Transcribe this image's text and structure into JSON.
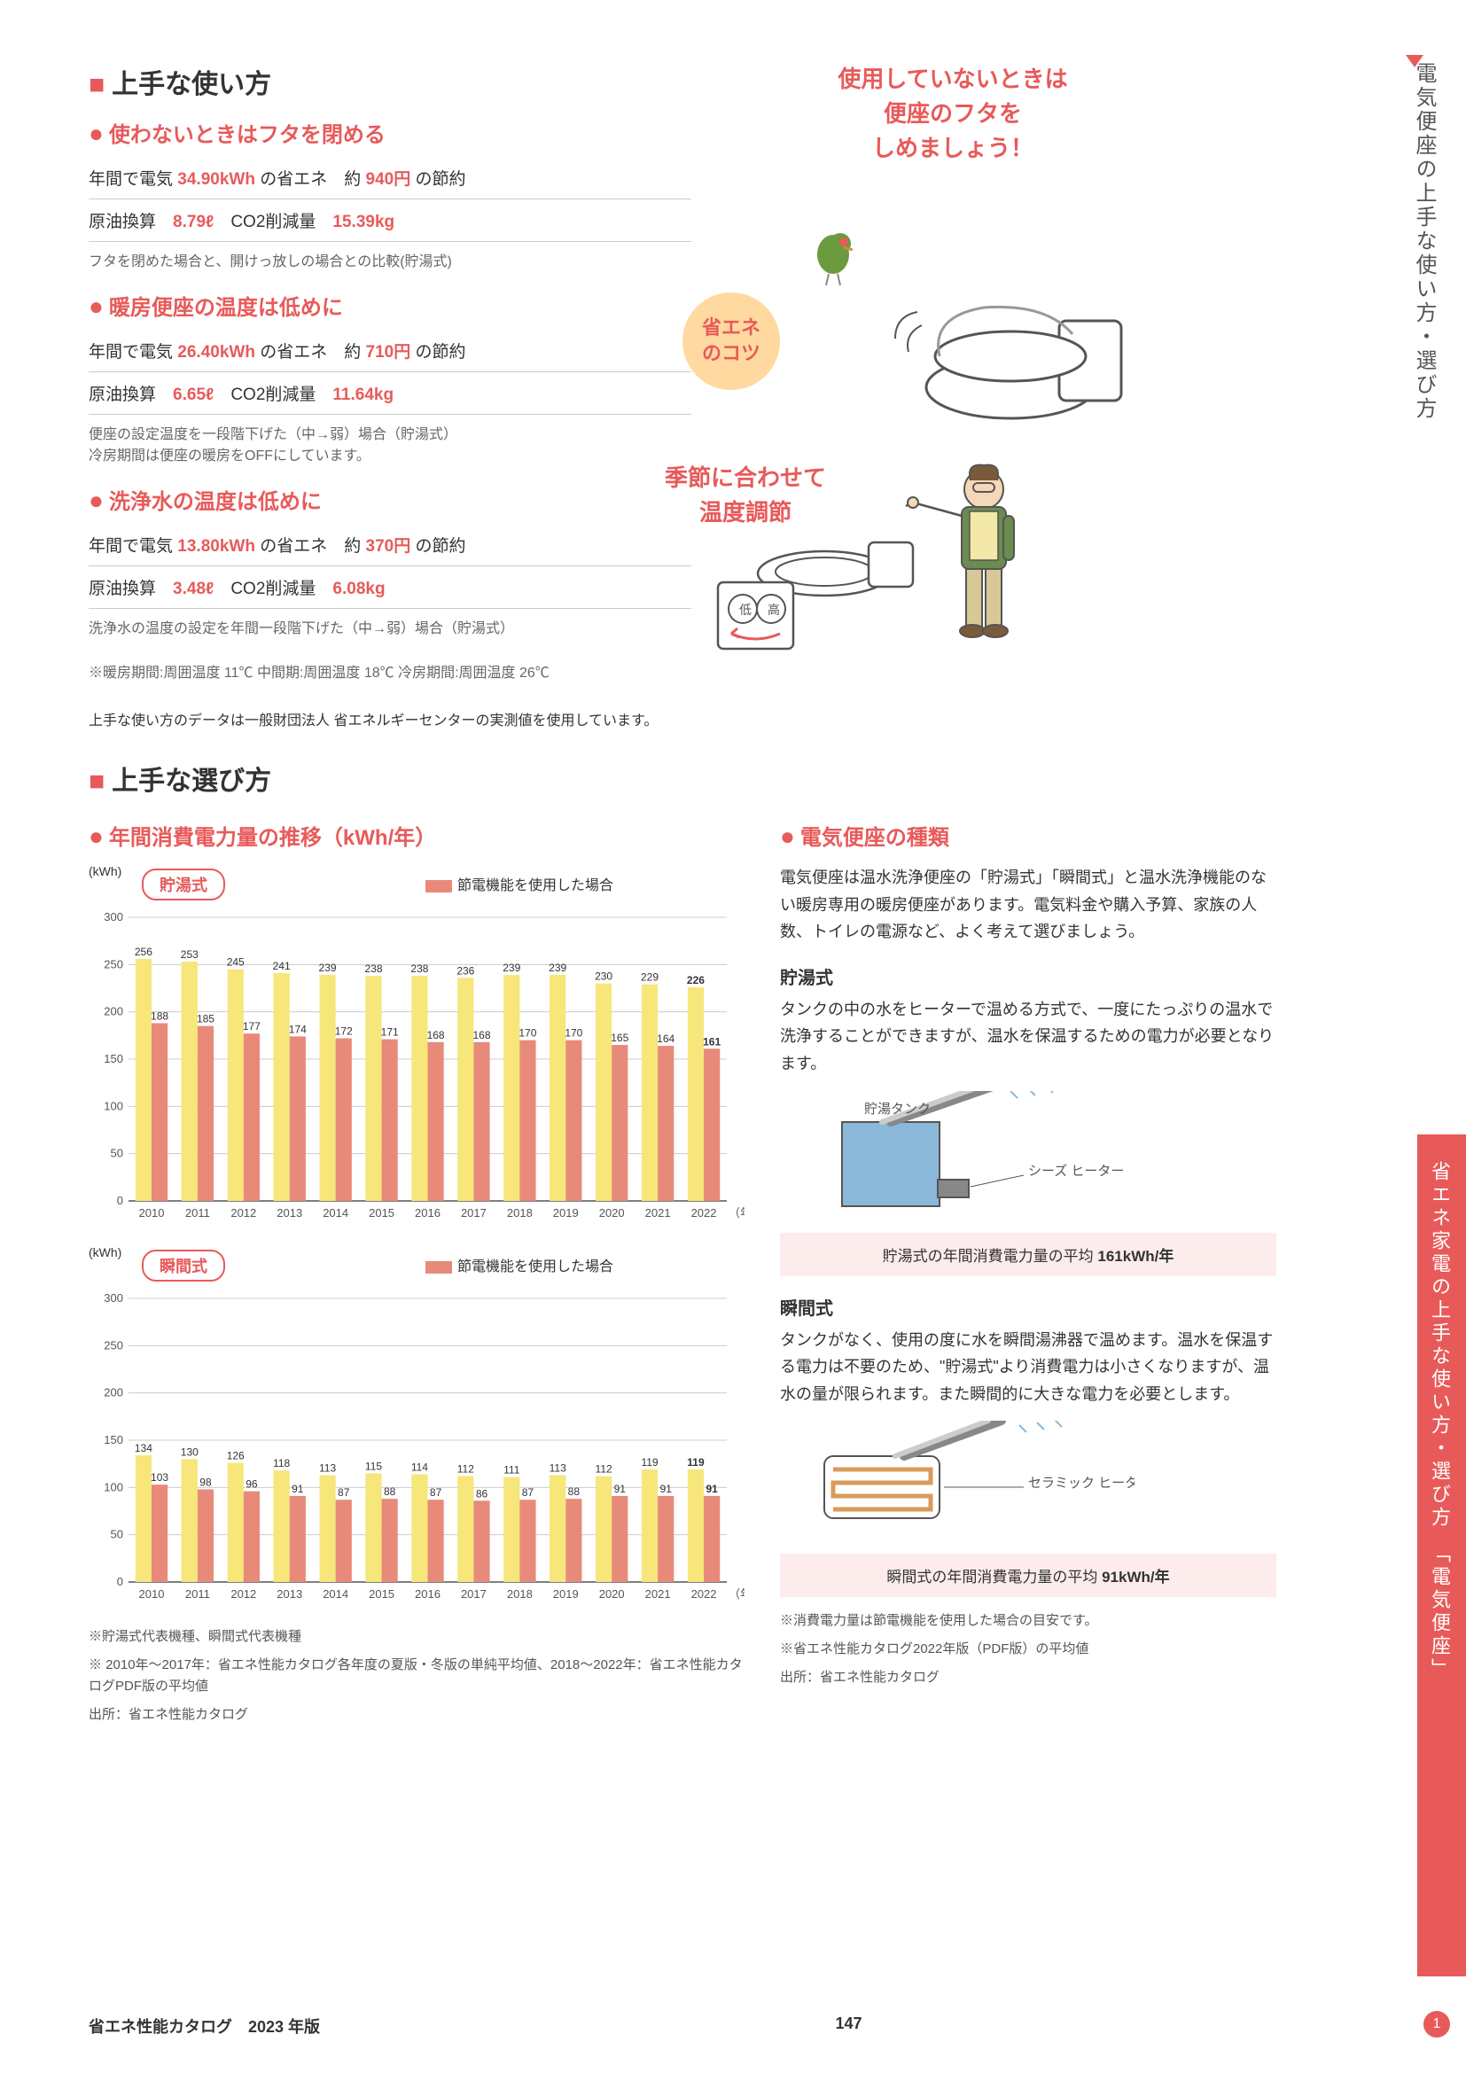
{
  "sidebar_vertical": "電気便座の上手な使い方・選び方",
  "sidebar_tab": "省エネ家電の上手な使い方・選び方　「電気便座」",
  "sec1_title": "上手な使い方",
  "tip1": {
    "title": "使わないときはフタを閉める",
    "row1_a": "年間で電気",
    "row1_kwh": "34.90kWh",
    "row1_b": "の省エネ　約",
    "row1_yen": "940円",
    "row1_c": "の節約",
    "row2_a": "原油換算",
    "row2_oil": "8.79ℓ",
    "row2_b": "　CO2削減量",
    "row2_co2": "15.39kg",
    "note": "フタを閉めた場合と、開けっ放しの場合との比較(貯湯式)"
  },
  "tip2": {
    "title": "暖房便座の温度は低めに",
    "row1_a": "年間で電気",
    "row1_kwh": "26.40kWh",
    "row1_b": "の省エネ　約",
    "row1_yen": "710円",
    "row1_c": "の節約",
    "row2_a": "原油換算",
    "row2_oil": "6.65ℓ",
    "row2_b": "　CO2削減量",
    "row2_co2": "11.64kg",
    "note": "便座の設定温度を一段階下げた（中→弱）場合（貯湯式）\n冷房期間は便座の暖房をOFFにしています。"
  },
  "tip3": {
    "title": "洗浄水の温度は低めに",
    "row1_a": "年間で電気",
    "row1_kwh": "13.80kWh",
    "row1_b": "の省エネ　約",
    "row1_yen": "370円",
    "row1_c": "の節約",
    "row2_a": "原油換算",
    "row2_oil": "3.48ℓ",
    "row2_b": "　CO2削減量",
    "row2_co2": "6.08kg",
    "note": "洗浄水の温度の設定を年間一段階下げた（中→弱）場合（貯湯式）"
  },
  "temp_note": "※暖房期間:周囲温度 11℃ 中間期:周囲温度 18℃ 冷房期間:周囲温度 26℃",
  "source_note": "上手な使い方のデータは一般財団法人 省エネルギーセンターの実測値を使用しています。",
  "speech1": "使用していないときは\n便座のフタを\nしめましょう！",
  "tip_circle": "省エネ\nのコツ",
  "speech2": "季節に合わせて\n温度調節",
  "sec2_title": "上手な選び方",
  "chart_main_title": "年間消費電力量の推移（kWh/年）",
  "chart1": {
    "tag": "貯湯式",
    "legend": "節電機能を使用した場合",
    "ylabel": "(kWh)",
    "ymax": 300,
    "ystep": 50,
    "years": [
      "2010",
      "2011",
      "2012",
      "2013",
      "2014",
      "2015",
      "2016",
      "2017",
      "2018",
      "2019",
      "2020",
      "2021",
      "2022"
    ],
    "yellow": [
      256,
      253,
      245,
      241,
      239,
      238,
      238,
      236,
      239,
      239,
      230,
      229,
      226
    ],
    "red": [
      188,
      185,
      177,
      174,
      172,
      171,
      168,
      168,
      170,
      170,
      165,
      164,
      161
    ],
    "bar_yellow": "#f7e679",
    "bar_red": "#e88a7a",
    "grid": "#cccccc",
    "highlight_last": "#e85a5a"
  },
  "chart2": {
    "tag": "瞬間式",
    "legend": "節電機能を使用した場合",
    "ylabel": "(kWh)",
    "ymax": 300,
    "ystep": 50,
    "years": [
      "2010",
      "2011",
      "2012",
      "2013",
      "2014",
      "2015",
      "2016",
      "2017",
      "2018",
      "2019",
      "2020",
      "2021",
      "2022"
    ],
    "yellow": [
      134,
      130,
      126,
      118,
      113,
      115,
      114,
      112,
      111,
      113,
      112,
      119,
      119
    ],
    "red": [
      103,
      98,
      96,
      91,
      87,
      88,
      87,
      86,
      87,
      88,
      91,
      91,
      91
    ],
    "bar_yellow": "#f7e679",
    "bar_red": "#e88a7a",
    "grid": "#cccccc",
    "highlight_last": "#e85a5a"
  },
  "chart_xunit": "（年）",
  "chart_note1": "※貯湯式代表機種、瞬間式代表機種",
  "chart_note2": "※ 2010年〜2017年：省エネ性能カタログ各年度の夏版・冬版の単純平均値、2018〜2022年：省エネ性能カタログPDF版の平均値",
  "chart_note3": "出所：省エネ性能カタログ",
  "types_title": "電気便座の種類",
  "types_intro": "電気便座は温水洗浄便座の「貯湯式」「瞬間式」と温水洗浄機能のない暖房専用の暖房便座があります。電気料金や購入予算、家族の人数、トイレの電源など、よく考えて選びましょう。",
  "type1_h": "貯湯式",
  "type1_p": "タンクの中の水をヒーターで温める方式で、一度にたっぷりの温水で洗浄することができますが、温水を保温するための電力が必要となります。",
  "type1_labels": {
    "tank": "貯湯タンク",
    "heater": "シーズ\nヒーター"
  },
  "type1_box": "貯湯式の年間消費電力量の平均",
  "type1_box_val": "161kWh/年",
  "type2_h": "瞬間式",
  "type2_p": "タンクがなく、使用の度に水を瞬間湯沸器で温めます。温水を保温する電力は不要のため、\"貯湯式\"より消費電力は小さくなりますが、温水の量が限られます。また瞬間的に大きな電力を必要とします。",
  "type2_labels": {
    "heater": "セラミック\nヒーター"
  },
  "type2_box": "瞬間式の年間消費電力量の平均",
  "type2_box_val": "91kWh/年",
  "types_note1": "※消費電力量は節電機能を使用した場合の目安です。",
  "types_note2": "※省エネ性能カタログ2022年版（PDF版）の平均値",
  "types_note3": "出所：省エネ性能カタログ",
  "footer_left": "省エネ性能カタログ　2023 年版",
  "footer_center": "147",
  "page_circle": "1"
}
